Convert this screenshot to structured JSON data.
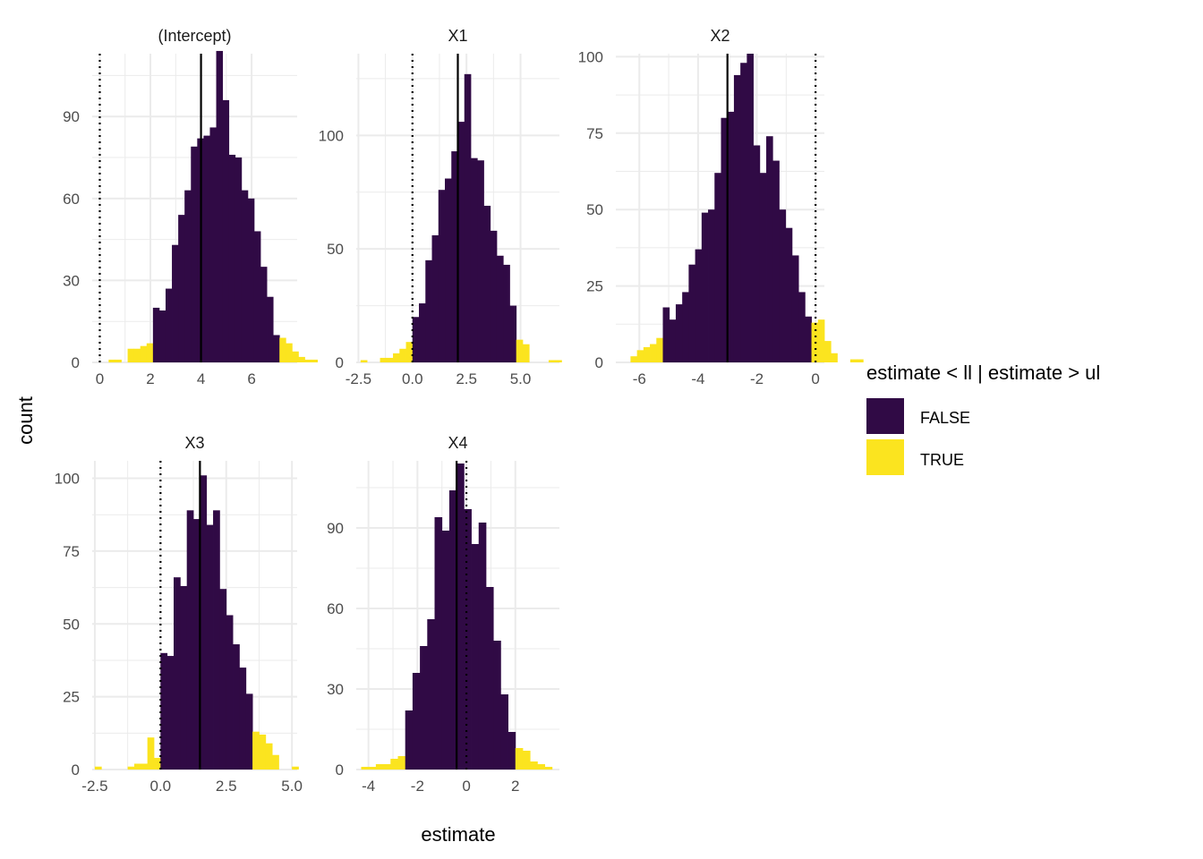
{
  "colors": {
    "false": "#300A45",
    "true": "#FBE41F",
    "grid": "#EBEBEB",
    "ref": "#000000"
  },
  "chart_data": {
    "type": "bar",
    "xlabel": "estimate",
    "ylabel": "count",
    "legend": {
      "title": "estimate < ll | estimate > ul",
      "placement": "right",
      "entries": [
        {
          "label": "FALSE",
          "color": "#300A45"
        },
        {
          "label": "TRUE",
          "color": "#FBE41F"
        }
      ]
    },
    "panels": [
      {
        "title": "(Intercept)",
        "xlim": [
          -0.3,
          7.8
        ],
        "ylim": [
          0,
          113
        ],
        "xticks": [
          0,
          2,
          4,
          6
        ],
        "xtick_labels": [
          "0",
          "2",
          "4",
          "6"
        ],
        "yticks": [
          0,
          30,
          60,
          90
        ],
        "ytick_labels": [
          "0",
          "30",
          "60",
          "90"
        ],
        "vline_solid": 4,
        "vline_dotted": [
          0
        ],
        "bins": {
          "start": 0.35,
          "width": 0.25,
          "values": [
            1,
            1,
            0,
            5,
            5,
            6,
            7,
            20,
            19,
            27,
            43,
            54,
            63,
            79,
            82,
            83,
            86,
            114,
            96,
            76,
            75,
            63,
            60,
            48,
            35,
            24,
            10,
            9,
            7,
            4,
            2,
            1,
            1
          ],
          "flags": [
            1,
            1,
            1,
            1,
            1,
            1,
            1,
            0,
            0,
            0,
            0,
            0,
            0,
            0,
            0,
            0,
            0,
            0,
            0,
            0,
            0,
            0,
            0,
            0,
            0,
            0,
            0,
            1,
            1,
            1,
            1,
            1,
            1
          ]
        }
      },
      {
        "title": "X1",
        "xlim": [
          -2.6,
          6.8
        ],
        "ylim": [
          0,
          136
        ],
        "xticks": [
          -2.5,
          0,
          2.5,
          5
        ],
        "xtick_labels": [
          "-2.5",
          "0.0",
          "2.5",
          "5.0"
        ],
        "yticks": [
          0,
          50,
          100
        ],
        "ytick_labels": [
          "0",
          "50",
          "100"
        ],
        "vline_solid": 2.1,
        "vline_dotted": [
          0
        ],
        "bins": {
          "start": -2.4,
          "width": 0.3,
          "values": [
            1,
            0,
            0,
            2,
            2,
            4,
            6,
            9,
            20,
            26,
            45,
            56,
            76,
            81,
            93,
            106,
            127,
            90,
            89,
            69,
            58,
            47,
            43,
            25,
            10,
            8,
            0,
            0,
            0,
            1,
            1
          ],
          "flags": [
            1,
            1,
            1,
            1,
            1,
            1,
            1,
            1,
            0,
            0,
            0,
            0,
            0,
            0,
            0,
            0,
            0,
            0,
            0,
            0,
            0,
            0,
            0,
            0,
            1,
            1,
            1,
            1,
            1,
            1,
            1
          ]
        }
      },
      {
        "title": "X2",
        "xlim": [
          -6.8,
          0.3
        ],
        "ylim": [
          0,
          101
        ],
        "xticks": [
          -6,
          -4,
          -2,
          0
        ],
        "xtick_labels": [
          "-6",
          "-4",
          "-2",
          "0"
        ],
        "yticks": [
          0,
          25,
          50,
          75,
          100
        ],
        "ytick_labels": [
          "0",
          "25",
          "50",
          "75",
          "100"
        ],
        "vline_solid": -3,
        "vline_dotted": [
          0
        ],
        "bins": {
          "start": -6.3,
          "width": 0.22,
          "values": [
            2,
            4,
            5,
            6,
            8,
            18,
            14,
            19,
            23,
            32,
            37,
            49,
            50,
            62,
            80,
            82,
            94,
            98,
            101,
            71,
            62,
            74,
            66,
            50,
            44,
            35,
            23,
            15,
            13,
            14,
            7,
            3,
            0,
            0,
            1,
            1
          ],
          "flags": [
            1,
            1,
            1,
            1,
            1,
            0,
            0,
            0,
            0,
            0,
            0,
            0,
            0,
            0,
            0,
            0,
            0,
            0,
            0,
            0,
            0,
            0,
            0,
            0,
            0,
            0,
            0,
            0,
            1,
            1,
            1,
            1,
            1,
            1,
            1,
            1
          ]
        }
      },
      {
        "title": "X3",
        "xlim": [
          -2.6,
          5.2
        ],
        "ylim": [
          0,
          106
        ],
        "xticks": [
          -2.5,
          0,
          2.5,
          5
        ],
        "xtick_labels": [
          "-2.5",
          "0.0",
          "2.5",
          "5.0"
        ],
        "yticks": [
          0,
          25,
          50,
          75,
          100
        ],
        "ytick_labels": [
          "0",
          "25",
          "50",
          "75",
          "100"
        ],
        "vline_solid": 1.5,
        "vline_dotted": [
          0
        ],
        "bins": {
          "start": -2.5,
          "width": 0.25,
          "values": [
            1,
            0,
            0,
            0,
            0,
            1,
            2,
            2,
            11,
            4,
            40,
            39,
            66,
            63,
            89,
            86,
            101,
            84,
            89,
            62,
            53,
            43,
            35,
            26,
            13,
            12,
            9,
            5,
            0,
            0,
            1
          ],
          "flags": [
            1,
            1,
            1,
            1,
            1,
            1,
            1,
            1,
            1,
            1,
            0,
            0,
            0,
            0,
            0,
            0,
            0,
            0,
            0,
            0,
            0,
            0,
            0,
            0,
            1,
            1,
            1,
            1,
            1,
            1,
            1
          ]
        }
      },
      {
        "title": "X4",
        "xlim": [
          -4.5,
          3.8
        ],
        "ylim": [
          0,
          115
        ],
        "xticks": [
          -4,
          -2,
          0,
          2
        ],
        "xtick_labels": [
          "-4",
          "-2",
          "0",
          "2"
        ],
        "yticks": [
          0,
          30,
          60,
          90
        ],
        "ytick_labels": [
          "0",
          "30",
          "60",
          "90"
        ],
        "vline_solid": -0.4,
        "vline_dotted": [
          0
        ],
        "bins": {
          "start": -4.3,
          "width": 0.3,
          "values": [
            1,
            1,
            2,
            2,
            4,
            5,
            22,
            36,
            46,
            56,
            94,
            89,
            104,
            114,
            97,
            84,
            92,
            68,
            48,
            28,
            14,
            8,
            7,
            3,
            2,
            1
          ],
          "flags": [
            1,
            1,
            1,
            1,
            1,
            1,
            0,
            0,
            0,
            0,
            0,
            0,
            0,
            0,
            0,
            0,
            0,
            0,
            0,
            0,
            0,
            1,
            1,
            1,
            1,
            1
          ]
        }
      }
    ]
  }
}
